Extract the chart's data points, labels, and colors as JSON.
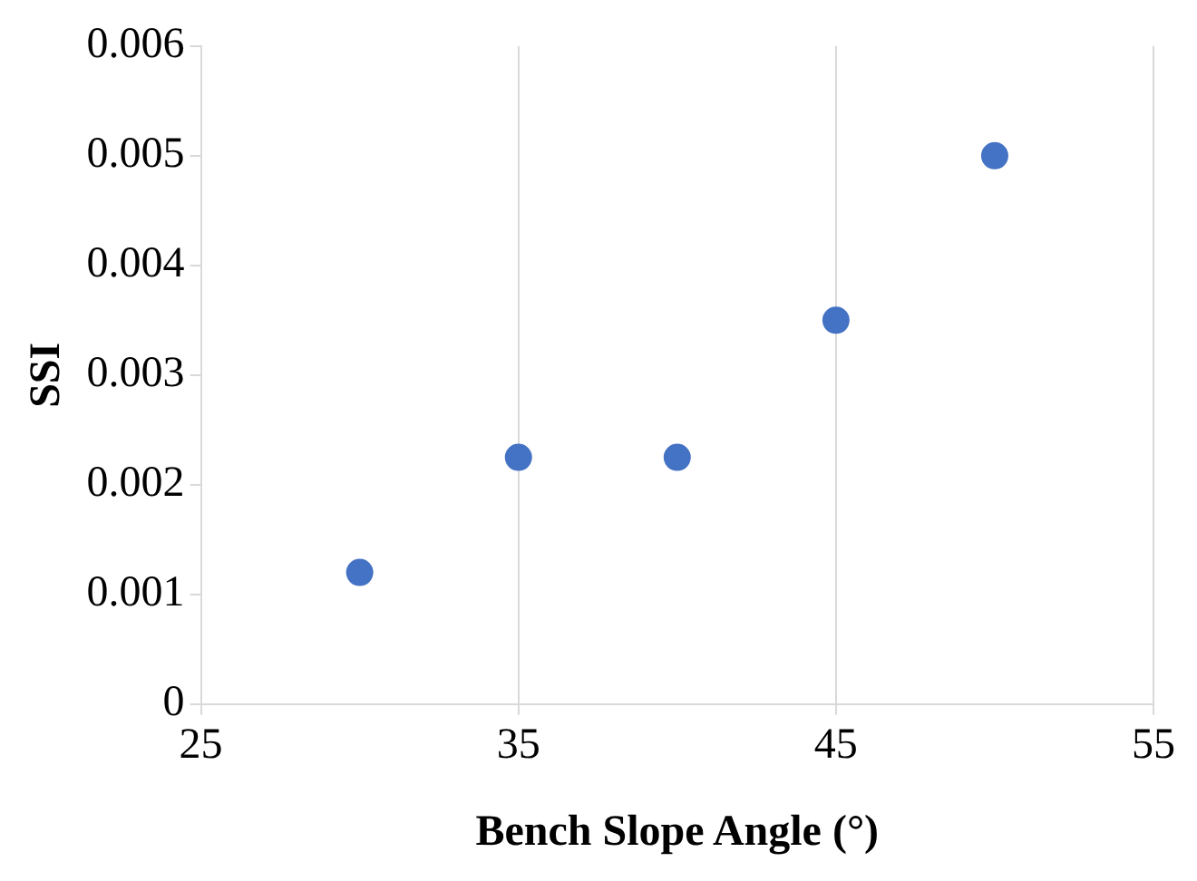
{
  "chart_data": {
    "type": "scatter",
    "xlabel": "Bench Slope Angle (°)",
    "ylabel": "SSI",
    "x": [
      30,
      35,
      40,
      45,
      50
    ],
    "series": [
      {
        "color": "#4472c4",
        "values": [
          0.0012,
          0.00225,
          0.00225,
          0.0035,
          0.005
        ]
      }
    ],
    "xlim": [
      25,
      55
    ],
    "xticks": [
      25,
      35,
      45,
      55
    ],
    "ylim": [
      0,
      0.006
    ],
    "yticks": [
      0,
      0.001,
      0.002,
      0.003,
      0.004,
      0.005,
      0.006
    ],
    "grid": "x",
    "legend": false,
    "marker": "circle"
  }
}
